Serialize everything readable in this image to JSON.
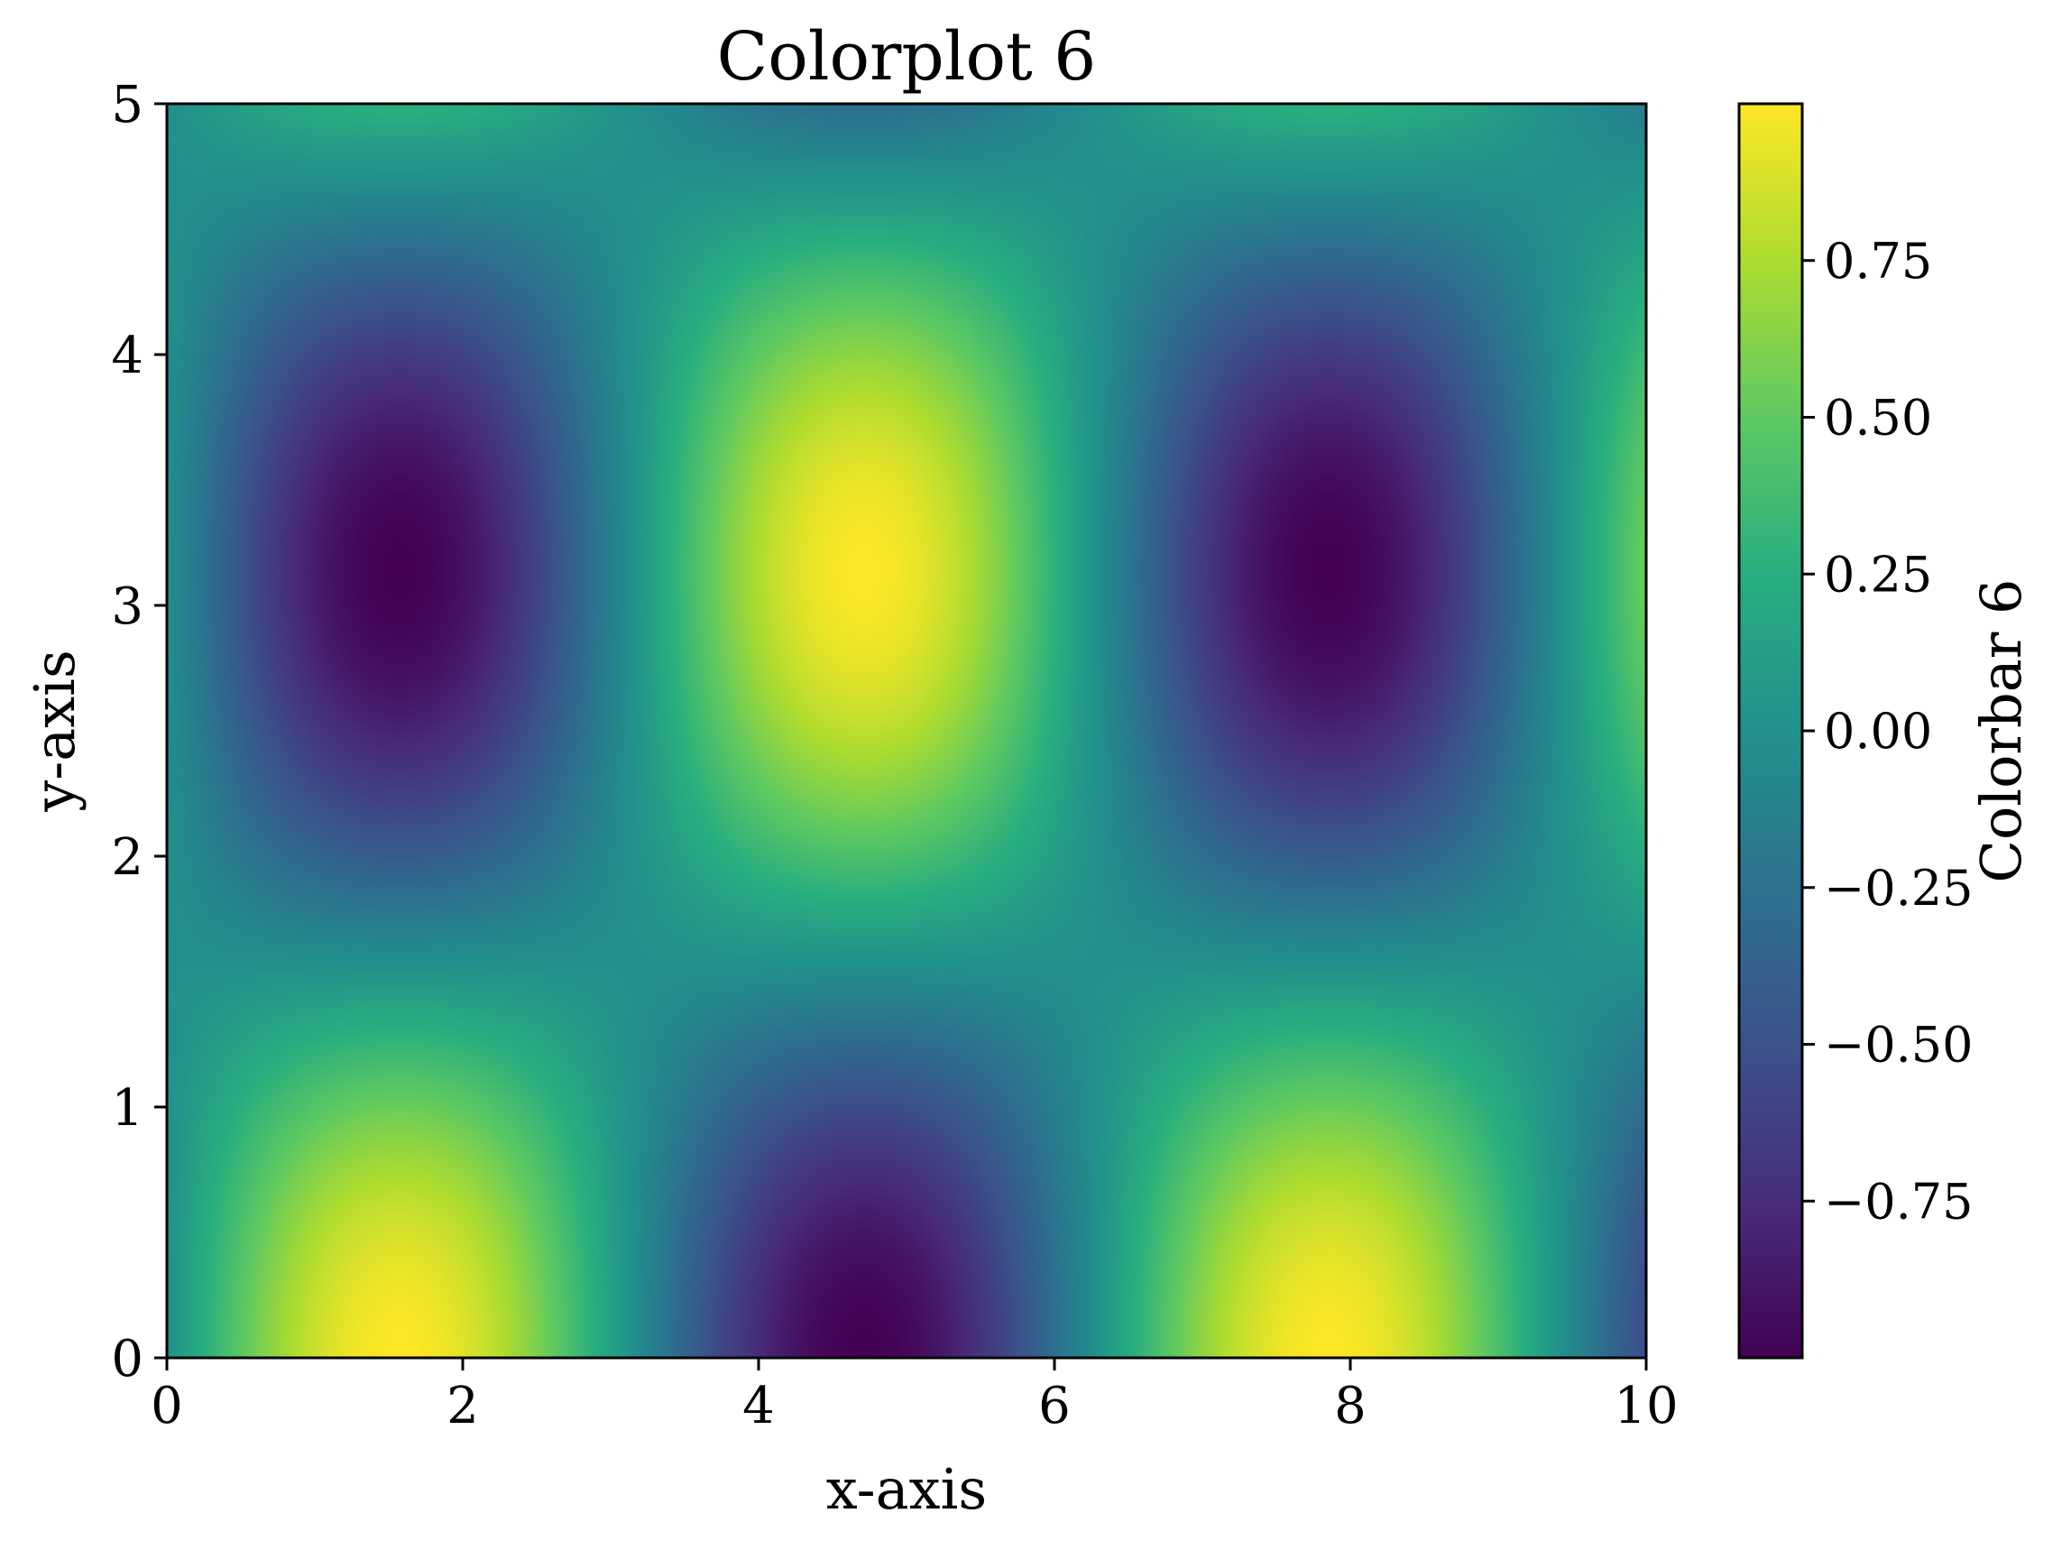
{
  "chart_data": {
    "type": "heatmap",
    "title": "Colorplot 6",
    "xlabel": "x-axis",
    "ylabel": "y-axis",
    "xlim": [
      0,
      10
    ],
    "ylim": [
      0,
      5
    ],
    "x_ticks": [
      0,
      2,
      4,
      6,
      8,
      10
    ],
    "x_tick_labels": [
      "0",
      "2",
      "4",
      "6",
      "8",
      "10"
    ],
    "y_ticks": [
      0,
      1,
      2,
      3,
      4,
      5
    ],
    "y_tick_labels": [
      "0",
      "1",
      "2",
      "3",
      "4",
      "5"
    ],
    "colormap": "viridis",
    "colormap_stops": [
      "#440154",
      "#472d7b",
      "#3b528b",
      "#2c728e",
      "#21918c",
      "#28ae80",
      "#5ec962",
      "#addc30",
      "#fde725"
    ],
    "value_range": [
      -1,
      1
    ],
    "field": {
      "formula": "sin(x) * cos(y)",
      "grid_x": [
        0,
        1,
        2,
        3,
        4,
        5,
        6,
        7,
        8,
        9,
        10
      ],
      "grid_y": [
        5,
        4,
        3,
        2,
        1,
        0
      ],
      "values": [
        [
          0.0,
          0.24,
          0.26,
          0.04,
          -0.21,
          -0.27,
          -0.08,
          0.19,
          0.28,
          0.12,
          -0.15
        ],
        [
          0.0,
          -0.55,
          -0.59,
          -0.09,
          0.5,
          0.63,
          0.18,
          -0.43,
          -0.65,
          -0.27,
          0.36
        ],
        [
          0.0,
          -0.83,
          -0.9,
          -0.14,
          0.75,
          0.95,
          0.28,
          -0.65,
          -0.98,
          -0.41,
          0.54
        ],
        [
          0.0,
          -0.35,
          -0.38,
          -0.06,
          0.31,
          0.4,
          0.12,
          -0.27,
          -0.41,
          -0.17,
          0.23
        ],
        [
          0.0,
          0.45,
          0.49,
          0.08,
          -0.41,
          -0.52,
          -0.15,
          0.36,
          0.53,
          0.22,
          -0.29
        ],
        [
          0.0,
          0.84,
          0.91,
          0.14,
          -0.76,
          -0.96,
          -0.28,
          0.66,
          0.99,
          0.41,
          -0.54
        ]
      ]
    },
    "colorbar": {
      "label": "Colorbar 6",
      "ticks": [
        0.75,
        0.5,
        0.25,
        0.0,
        -0.25,
        -0.5,
        -0.75
      ],
      "tick_labels": [
        "0.75",
        "0.50",
        "0.25",
        "0.00",
        "−0.25",
        "−0.50",
        "−0.75"
      ]
    }
  }
}
